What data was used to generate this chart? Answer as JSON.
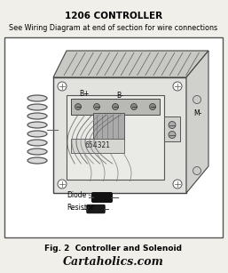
{
  "title": "1206 CONTROLLER",
  "subtitle": "See Wiring Diagram at end of section for wire connections",
  "fig_caption": "Fig. 2  Controller and Solenoid",
  "fig_brand": "Cartaholics.com",
  "bg_color": "#f0efea",
  "border_color": "#444444",
  "title_fontsize": 7.5,
  "subtitle_fontsize": 5.8,
  "caption_fontsize": 6.5,
  "brand_fontsize": 9,
  "label_fontsize": 5.5
}
